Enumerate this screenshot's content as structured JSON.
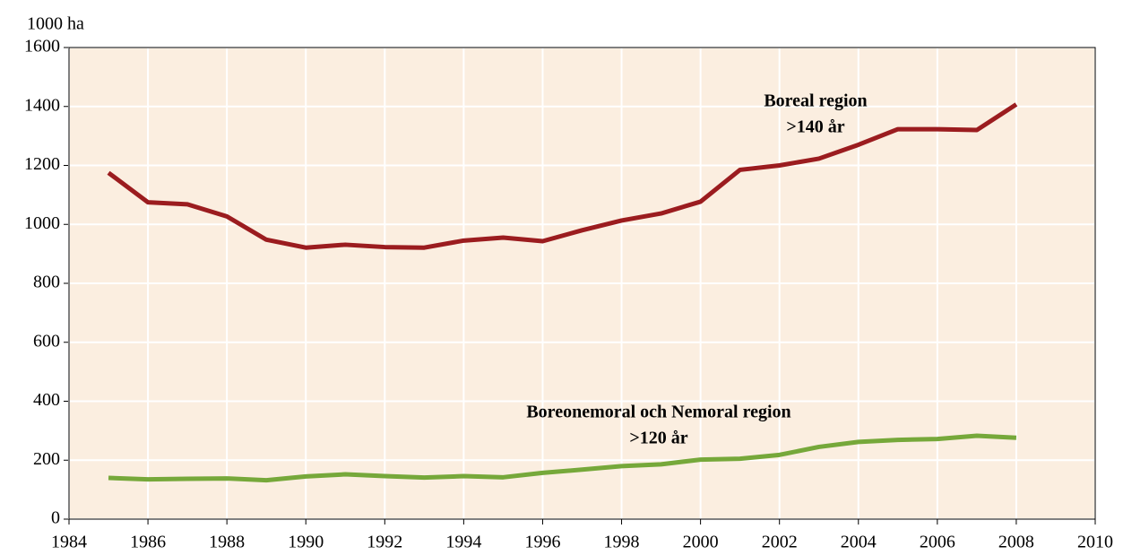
{
  "chart_data": {
    "type": "line",
    "y_label": "1000 ha",
    "x": [
      1985,
      1986,
      1987,
      1988,
      1989,
      1990,
      1991,
      1992,
      1993,
      1994,
      1995,
      1996,
      1997,
      1998,
      1999,
      2000,
      2001,
      2002,
      2003,
      2004,
      2005,
      2006,
      2007,
      2008
    ],
    "series": [
      {
        "name": "Boreal region",
        "color": "#9b1c1f",
        "values": [
          1175,
          1075,
          1068,
          1027,
          948,
          921,
          931,
          923,
          921,
          945,
          955,
          943,
          980,
          1013,
          1037,
          1077,
          1185,
          1200,
          1223,
          1270,
          1323,
          1323,
          1320,
          1407
        ]
      },
      {
        "name": "Boreonemoral och Nemoral region",
        "color": "#76a83a",
        "values": [
          140,
          135,
          137,
          138,
          132,
          145,
          152,
          146,
          141,
          146,
          142,
          157,
          168,
          180,
          186,
          202,
          205,
          218,
          245,
          262,
          269,
          272,
          283,
          276
        ]
      }
    ],
    "annotations": [
      ">140 år",
      ">120 år"
    ],
    "xlim": [
      1984,
      2010
    ],
    "xticks": [
      1984,
      1986,
      1988,
      1990,
      1992,
      1994,
      1996,
      1998,
      2000,
      2002,
      2004,
      2006,
      2008,
      2010
    ],
    "ylim": [
      0,
      1600
    ],
    "yticks": [
      0,
      200,
      400,
      600,
      800,
      1000,
      1200,
      1400,
      1600
    ],
    "grid": true,
    "background": "#fbeee0"
  }
}
